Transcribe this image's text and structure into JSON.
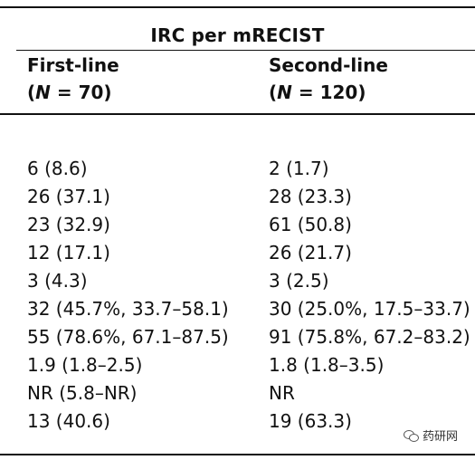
{
  "table": {
    "group_title": "IRC per mRECIST",
    "columns": [
      {
        "name": "First-line",
        "n_label": "N",
        "n_value": "= 70"
      },
      {
        "name": "Second-line",
        "n_label": "N",
        "n_value": "= 120"
      }
    ],
    "rows": [
      [
        "6 (8.6)",
        "2 (1.7)"
      ],
      [
        "26 (37.1)",
        "28 (23.3)"
      ],
      [
        "23 (32.9)",
        "61 (50.8)"
      ],
      [
        "12 (17.1)",
        "26 (21.7)"
      ],
      [
        "3 (4.3)",
        "3 (2.5)"
      ],
      [
        "32 (45.7%, 33.7–58.1)",
        "30 (25.0%, 17.5–33.7)"
      ],
      [
        "55 (78.6%, 67.1–87.5)",
        "91 (75.8%, 67.2–83.2)"
      ],
      [
        "1.9 (1.8–2.5)",
        "1.8 (1.8–3.5)"
      ],
      [
        "NR (5.8–NR)",
        "NR"
      ],
      [
        "13 (40.6)",
        "19 (63.3)"
      ]
    ]
  },
  "watermark": {
    "text": "药研网",
    "icon": "chat-bubbles-icon"
  }
}
